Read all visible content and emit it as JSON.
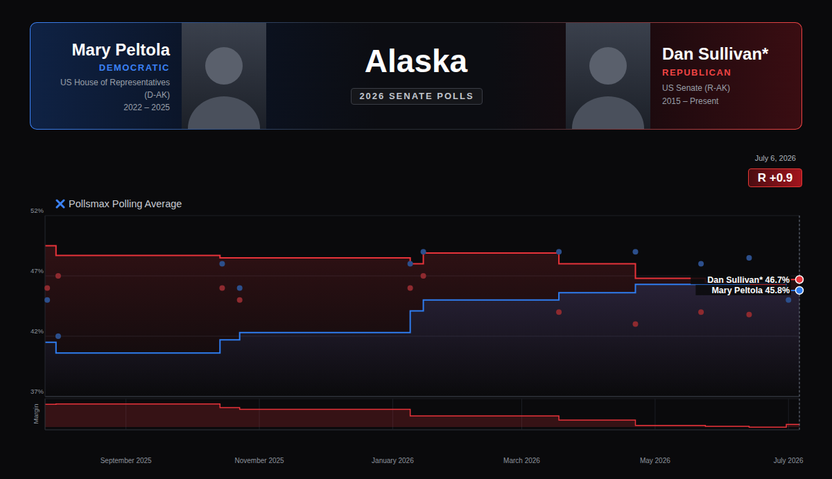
{
  "header": {
    "title": "Alaska",
    "subtitle": "2026 SENATE POLLS",
    "left": {
      "name": "Mary Peltola",
      "party": "DEMOCRATIC",
      "office": [
        "US House of Representatives",
        "(D-AK)"
      ],
      "term": "2022 – 2025"
    },
    "right": {
      "name": "Dan Sullivan*",
      "party": "REPUBLICAN",
      "office": [
        "US Senate (R-AK)"
      ],
      "term": "2015 – Present"
    }
  },
  "chart_data": [
    {
      "type": "line",
      "title": "Pollsmax Polling Average",
      "line_style": "step",
      "x": [
        "2025-07-26",
        "2025-07-31",
        "2025-10-14",
        "2025-10-23",
        "2026-01-09",
        "2026-01-15",
        "2026-03-18",
        "2026-04-22",
        "2026-05-24",
        "2026-06-13",
        "2026-06-30",
        "2026-07-06"
      ],
      "series": [
        {
          "name": "Dan Sullivan*",
          "color": "#e8333a",
          "values": [
            49.5,
            48.7,
            48.5,
            48.5,
            48.0,
            48.9,
            48.0,
            46.8,
            46.5,
            46.3,
            46.7,
            46.7
          ],
          "polls": {
            "x": [
              "2025-07-27",
              "2025-08-01",
              "2025-10-15",
              "2025-10-23",
              "2026-01-09",
              "2026-01-15",
              "2026-03-18",
              "2026-04-22",
              "2026-05-22",
              "2026-06-13"
            ],
            "values": [
              46.0,
              47.0,
              46.0,
              45.0,
              46.0,
              47.0,
              44.0,
              43.0,
              44.0,
              43.8
            ],
            "color": "#8e2a2f"
          }
        },
        {
          "name": "Mary Peltola",
          "color": "#2f7df0",
          "values": [
            41.5,
            40.6,
            41.7,
            42.3,
            44.1,
            45.0,
            45.6,
            46.3,
            46.3,
            46.4,
            45.8,
            45.8
          ],
          "polls": {
            "x": [
              "2025-07-27",
              "2025-08-01",
              "2025-10-15",
              "2025-10-23",
              "2026-01-09",
              "2026-01-15",
              "2026-03-18",
              "2026-04-22",
              "2026-05-22",
              "2026-06-13",
              "2026-07-01"
            ],
            "values": [
              45.0,
              42.0,
              48.0,
              46.0,
              48.0,
              49.0,
              49.0,
              49.0,
              48.0,
              48.5,
              45.0
            ],
            "color": "#2c4f8c"
          }
        }
      ],
      "xlim": [
        "2025-07-26",
        "2026-07-06"
      ],
      "xticks": [
        {
          "value": "2025-09-01",
          "label": "September 2025"
        },
        {
          "value": "2025-11-01",
          "label": "November 2025"
        },
        {
          "value": "2026-01-01",
          "label": "January 2026"
        },
        {
          "value": "2026-03-01",
          "label": "March 2026"
        },
        {
          "value": "2026-05-01",
          "label": "May 2026"
        },
        {
          "value": "2026-07-01",
          "label": "July 2026"
        }
      ],
      "ylim": [
        37,
        52
      ],
      "yticks": [
        {
          "value": 37,
          "label": "37%"
        },
        {
          "value": 42,
          "label": "42%"
        },
        {
          "value": 47,
          "label": "47%"
        },
        {
          "value": 52,
          "label": "52%"
        }
      ],
      "grid": true,
      "tick_labels": "y",
      "annotations": [
        {
          "text": "July 6, 2026",
          "x": "2026-07-06"
        },
        {
          "text": "R +0.9",
          "x": "2026-07-06"
        },
        {
          "text": "Dan Sullivan* 46.7%",
          "x": "2026-07-06",
          "y": 46.7,
          "color": "#e8333a"
        },
        {
          "text": "Mary Peltola 45.8%",
          "x": "2026-07-06",
          "y": 45.8,
          "color": "#2f7df0"
        }
      ]
    },
    {
      "type": "area",
      "ylabel": "Margin",
      "line_style": "step",
      "x": [
        "2025-07-26",
        "2025-07-31",
        "2025-10-14",
        "2025-10-23",
        "2026-01-09",
        "2026-01-15",
        "2026-03-18",
        "2026-04-22",
        "2026-05-24",
        "2026-06-13",
        "2026-06-30",
        "2026-07-06"
      ],
      "values": [
        8.0,
        8.1,
        6.8,
        6.2,
        3.9,
        3.9,
        2.4,
        0.5,
        0.2,
        -0.1,
        0.9,
        0.9
      ],
      "color": "#e8333a",
      "xlim": [
        "2025-07-26",
        "2026-07-06"
      ],
      "xticks": [
        {
          "value": "2025-09-01",
          "label": "September 2025"
        },
        {
          "value": "2025-11-01",
          "label": "November 2025"
        },
        {
          "value": "2026-01-01",
          "label": "January 2026"
        },
        {
          "value": "2026-03-01",
          "label": "March 2026"
        },
        {
          "value": "2026-05-01",
          "label": "May 2026"
        },
        {
          "value": "2026-07-01",
          "label": "July 2026"
        }
      ],
      "ylim": [
        -1,
        10
      ],
      "yticks": [
        0
      ],
      "grid": true,
      "tick_labels": "x"
    }
  ]
}
